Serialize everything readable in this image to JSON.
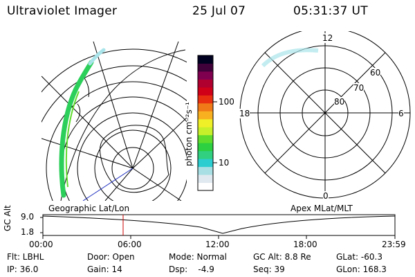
{
  "header": {
    "title": "Ultraviolet Imager",
    "date": "25 Jul 07",
    "time": "05:31:37 UT"
  },
  "colorbar": {
    "unit_label": "photon cm⁻²s⁻¹",
    "ticks": [
      {
        "label": "100",
        "value": 100
      },
      {
        "label": "10",
        "value": 10
      }
    ],
    "colors": [
      "#ffffff",
      "#dfe9ef",
      "#a8dfe4",
      "#2ccdd0",
      "#30d080",
      "#2cd040",
      "#5fdc2c",
      "#c8f02a",
      "#f0f028",
      "#f8b020",
      "#f07a18",
      "#e83010",
      "#d00018",
      "#b00030",
      "#800050",
      "#40003a",
      "#000020"
    ]
  },
  "left_map": {
    "caption": "Geographic Lat/Lon"
  },
  "right_map": {
    "caption": "Apex MLat/MLT",
    "mlt_labels": {
      "top": "12",
      "right": "6",
      "bottom": "0",
      "left": "18"
    },
    "lat_labels": [
      "80",
      "70",
      "60"
    ]
  },
  "timeline": {
    "ylabel": "GC Alt",
    "y_ticks": [
      "9.0",
      "1.8"
    ],
    "x_ticks": [
      "00:00",
      "06:00",
      "12:00",
      "18:00",
      "23:59"
    ],
    "current_time_marker": "05:31"
  },
  "info": {
    "row1": {
      "filter": "Flt: LBHL",
      "door": "Door: Open",
      "mode": "Mode: Normal",
      "gc_alt": "GC Alt: 8.8 Re",
      "glat": "GLat: -60.3"
    },
    "row2": {
      "ip": "IP: 36.0",
      "gain": "Gain: 14",
      "dsp": "Dsp:    -4.9",
      "seq": "Seq: 39",
      "glon": "GLon: 168.3"
    }
  },
  "colors": {
    "marker": "#cc0000",
    "aurora_green": "#2ccf5a",
    "aurora_cyan": "#a8e4ea",
    "track_blue": "#2030c0"
  }
}
